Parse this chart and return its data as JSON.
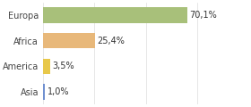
{
  "categories": [
    "Europa",
    "Africa",
    "America",
    "Asia"
  ],
  "values": [
    70.1,
    25.4,
    3.5,
    1.0
  ],
  "labels": [
    "70,1%",
    "25,4%",
    "3,5%",
    "1,0%"
  ],
  "bar_colors": [
    "#a8c07a",
    "#e8b87a",
    "#e8c84a",
    "#7090d0"
  ],
  "background_color": "#ffffff",
  "xlim": [
    0,
    100
  ],
  "label_fontsize": 7.0,
  "tick_fontsize": 7.0
}
